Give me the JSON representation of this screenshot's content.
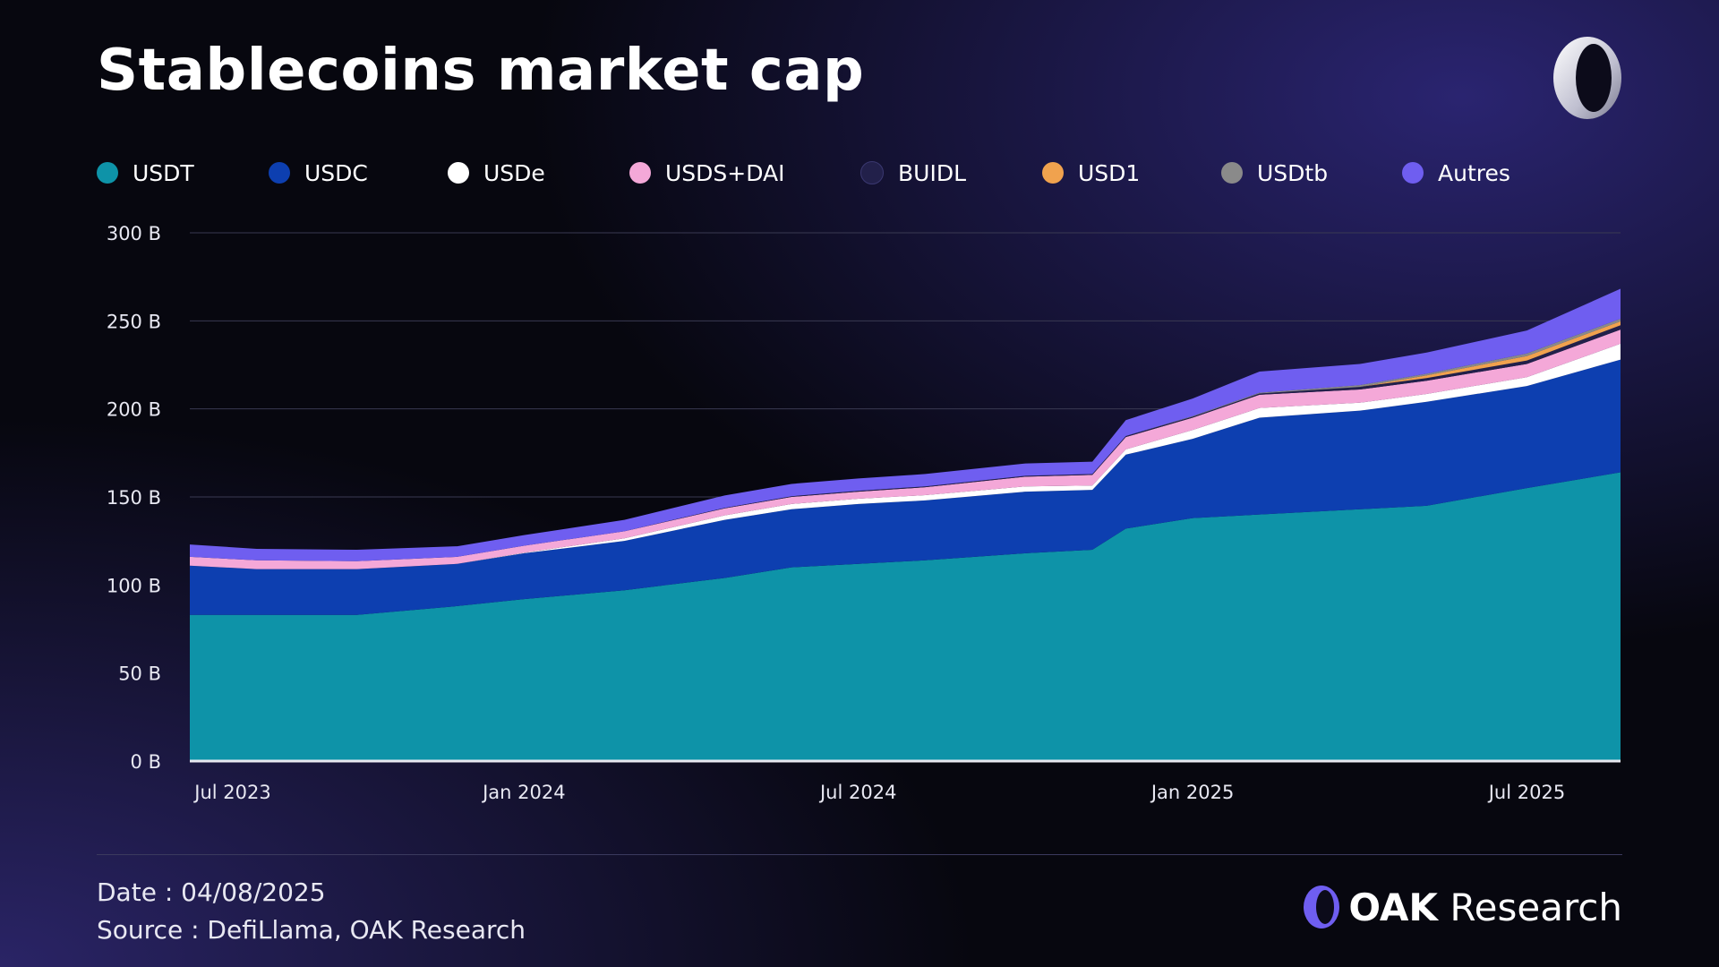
{
  "title": "Stablecoins market cap",
  "footer": {
    "date_label": "Date :",
    "date_value": "04/08/2025",
    "source_label": "Source :",
    "source_value": "DefiLlama, OAK Research",
    "brand_bold": "OAK",
    "brand_rest": "Research"
  },
  "colors": {
    "USDT": "#0e93a8",
    "USDC": "#0d3fb0",
    "USDe": "#ffffff",
    "USDS+DAI": "#f4a8d8",
    "BUIDL": "#22204a",
    "USD1": "#f0a24e",
    "USDtb": "#8a8a8a",
    "Autres": "#6f5ef0"
  },
  "chart_data": {
    "type": "area",
    "stacked": true,
    "title": "Stablecoins market cap",
    "xlabel": "",
    "ylabel": "",
    "ylim": [
      0,
      300
    ],
    "yticks": [
      0,
      50,
      100,
      150,
      200,
      250,
      300
    ],
    "ytick_labels": [
      "0 B",
      "50 B",
      "100 B",
      "150 B",
      "200 B",
      "250 B",
      "300 B"
    ],
    "xlim": [
      2023.5,
      2025.64
    ],
    "xticks": [
      {
        "x": 2023.5,
        "label": "Jul 2023"
      },
      {
        "x": 2024.0,
        "label": "Jan 2024"
      },
      {
        "x": 2024.5,
        "label": "Jul 2024"
      },
      {
        "x": 2025.0,
        "label": "Jan 2025"
      },
      {
        "x": 2025.5,
        "label": "Jul 2025"
      }
    ],
    "grid": true,
    "legend_position": "top",
    "units": "B USD",
    "x": [
      2023.5,
      2023.6,
      2023.75,
      2023.9,
      2024.0,
      2024.15,
      2024.3,
      2024.4,
      2024.5,
      2024.6,
      2024.75,
      2024.85,
      2024.9,
      2025.0,
      2025.1,
      2025.25,
      2025.35,
      2025.5,
      2025.64
    ],
    "series": [
      {
        "name": "USDT",
        "values": [
          83,
          83,
          83,
          88,
          92,
          97,
          104,
          110,
          112,
          114,
          118,
          120,
          132,
          138,
          140,
          143,
          145,
          155,
          164
        ]
      },
      {
        "name": "USDC",
        "values": [
          28,
          26,
          26,
          24,
          26,
          28,
          33,
          33,
          34,
          34,
          35,
          34,
          42,
          45,
          55,
          56,
          59,
          58,
          64
        ]
      },
      {
        "name": "USDe",
        "values": [
          0,
          0,
          0,
          0,
          0.3,
          1.5,
          2.5,
          3,
          3,
          3,
          3,
          2.5,
          3,
          5,
          5.5,
          4.5,
          4.5,
          5,
          9
        ]
      },
      {
        "name": "USDS+DAI",
        "values": [
          5,
          5,
          4.5,
          4,
          4,
          4,
          4,
          4,
          4,
          4.5,
          5.5,
          6,
          7,
          7,
          7.5,
          7.5,
          7.5,
          7.5,
          8
        ]
      },
      {
        "name": "BUIDL",
        "values": [
          0,
          0,
          0,
          0,
          0,
          0,
          0.3,
          0.4,
          0.5,
          0.5,
          0.5,
          0.5,
          0.6,
          0.6,
          0.7,
          1.5,
          1.5,
          2,
          2.5
        ]
      },
      {
        "name": "USD1",
        "values": [
          0,
          0,
          0,
          0,
          0,
          0,
          0,
          0,
          0,
          0,
          0,
          0,
          0,
          0,
          0,
          0,
          1.5,
          2.5,
          2.2
        ]
      },
      {
        "name": "USDtb",
        "values": [
          0,
          0,
          0,
          0,
          0,
          0,
          0,
          0,
          0,
          0,
          0,
          0,
          0,
          0.3,
          0.5,
          1,
          1,
          1.5,
          1.5
        ]
      },
      {
        "name": "Autres",
        "values": [
          7,
          6.5,
          6.5,
          6,
          6,
          6.5,
          7,
          7,
          7,
          7,
          7,
          7,
          9,
          10,
          12,
          12,
          12,
          13,
          17
        ]
      }
    ]
  }
}
